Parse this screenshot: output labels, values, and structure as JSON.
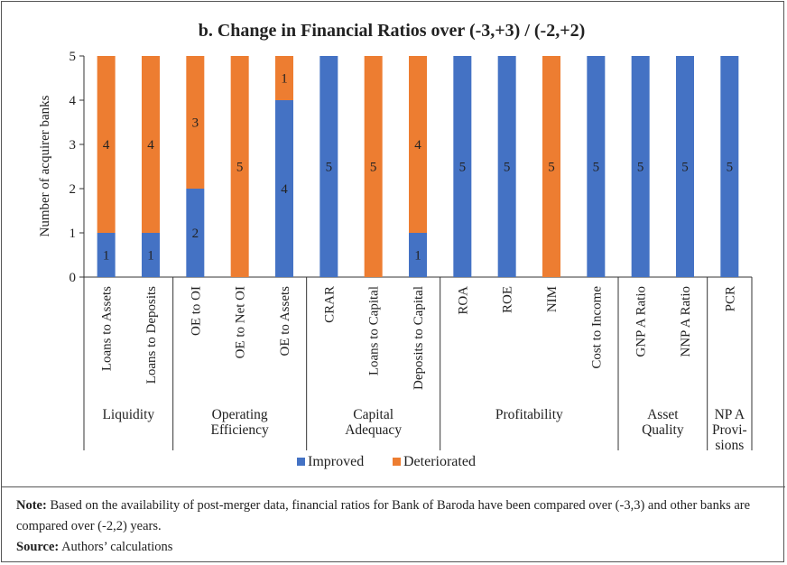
{
  "chart_data": {
    "type": "bar",
    "stacked": true,
    "title": "b. Change in Financial Ratios over (-3,+3) / (-2,+2)",
    "ylabel": "Number of acquirer banks",
    "ylim": [
      0,
      5
    ],
    "yticks": [
      "0",
      "1",
      "2",
      "3",
      "4",
      "5"
    ],
    "grid": false,
    "legend_position": "bottom",
    "categories": [
      "Loans to Assets",
      "Loans to Deposits",
      "OE to OI",
      "OE to Net OI",
      "OE to Assets",
      "CRAR",
      "Loans to Capital",
      "Deposits to Capital",
      "ROA",
      "ROE",
      "NIM",
      "Cost to Income",
      "GNP A Ratio",
      "NNP A Ratio",
      "PCR"
    ],
    "groups": [
      {
        "label": [
          "Liquidity"
        ],
        "count": 2
      },
      {
        "label": [
          "Operating",
          "Efficiency"
        ],
        "count": 3
      },
      {
        "label": [
          "Capital",
          "Adequacy"
        ],
        "count": 3
      },
      {
        "label": [
          "Profitability"
        ],
        "count": 4
      },
      {
        "label": [
          "Asset",
          "Quality"
        ],
        "count": 2
      },
      {
        "label": [
          "NP A",
          "Provi-",
          "sions"
        ],
        "count": 1
      }
    ],
    "series": [
      {
        "name": "Improved",
        "color": "#4472C4",
        "values": [
          1,
          1,
          2,
          0,
          4,
          5,
          0,
          1,
          5,
          5,
          0,
          5,
          5,
          5,
          5
        ]
      },
      {
        "name": "Deteriorated",
        "color": "#ED7D31",
        "values": [
          4,
          4,
          3,
          5,
          1,
          0,
          5,
          4,
          0,
          0,
          5,
          0,
          0,
          0,
          0
        ]
      }
    ]
  },
  "legend": {
    "improved": "Improved",
    "deteriorated": "Deteriorated"
  },
  "notes": {
    "note_label": "Note:",
    "note_text": " Based on the availability of post-merger data, financial ratios for Bank of Baroda have been compared over (-3,3) and other banks are compared over (-2,2) years.",
    "source_label": "Source:",
    "source_text": " Authors’ calculations"
  }
}
